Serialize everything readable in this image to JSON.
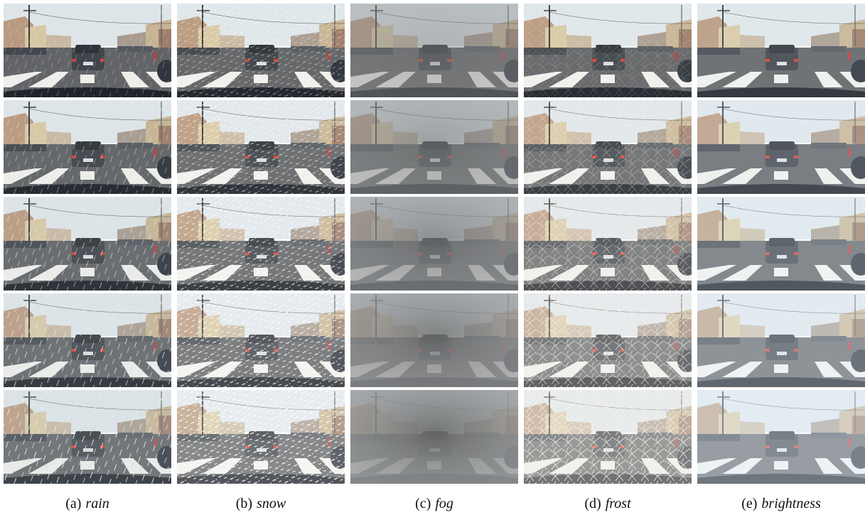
{
  "figure": {
    "panels": [
      {
        "label": "(a)",
        "name": "rain"
      },
      {
        "label": "(b)",
        "name": "snow"
      },
      {
        "label": "(c)",
        "name": "fog"
      },
      {
        "label": "(d)",
        "name": "frost"
      },
      {
        "label": "(e)",
        "name": "brightness"
      }
    ]
  }
}
